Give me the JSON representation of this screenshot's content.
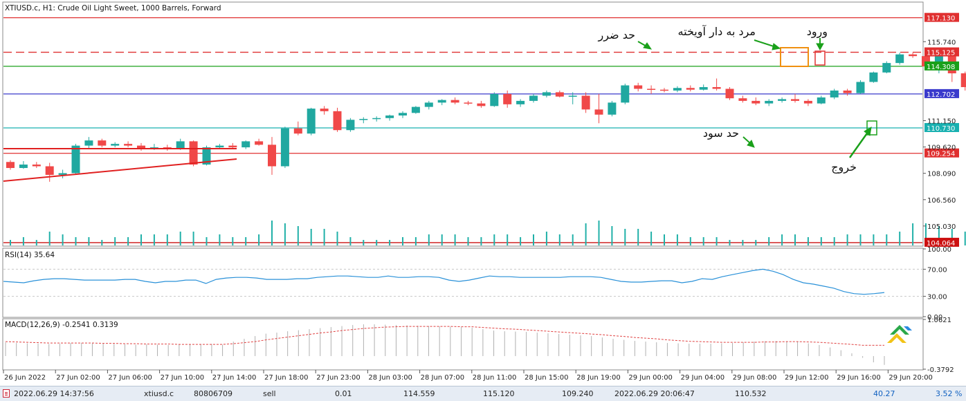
{
  "header": {
    "title": "XTIUSD.c, H1:  Crude Oil Light Sweet, 1000 Barrels, Forward"
  },
  "annotations": {
    "stop_loss": "حد ضرر",
    "hanging_man": "مرد به دار آویخته",
    "entry": "ورود",
    "take_profit": "حد سود",
    "exit": "خروج"
  },
  "chart_data": [
    {
      "type": "candlestick",
      "title": "XTIUSD.c, H1:  Crude Oil Light Sweet, 1000 Barrels, Forward",
      "ylim": [
        103.9,
        118.0
      ],
      "y_ticks": [
        "115.740",
        "111.150",
        "109.620",
        "108.090",
        "106.560",
        "105.030"
      ],
      "y_tick_values": [
        115.74,
        111.15,
        109.62,
        108.09,
        106.56,
        105.03
      ],
      "x_ticks": [
        "26 Jun 2022",
        "27 Jun 02:00",
        "27 Jun 06:00",
        "27 Jun 10:00",
        "27 Jun 14:00",
        "27 Jun 18:00",
        "27 Jun 23:00",
        "28 Jun 03:00",
        "28 Jun 07:00",
        "28 Jun 11:00",
        "28 Jun 15:00",
        "28 Jun 19:00",
        "29 Jun 00:00",
        "29 Jun 04:00",
        "29 Jun 08:00",
        "29 Jun 12:00",
        "29 Jun 16:00",
        "29 Jun 20:00"
      ],
      "candles": [
        {
          "o": 108.75,
          "h": 108.85,
          "l": 108.3,
          "c": 108.4
        },
        {
          "o": 108.4,
          "h": 108.8,
          "l": 108.35,
          "c": 108.6
        },
        {
          "o": 108.6,
          "h": 108.75,
          "l": 108.4,
          "c": 108.5
        },
        {
          "o": 108.5,
          "h": 108.7,
          "l": 107.6,
          "c": 108.0
        },
        {
          "o": 108.0,
          "h": 108.3,
          "l": 107.8,
          "c": 108.1
        },
        {
          "o": 108.1,
          "h": 109.8,
          "l": 108.0,
          "c": 109.7
        },
        {
          "o": 109.7,
          "h": 110.2,
          "l": 109.5,
          "c": 110.0
        },
        {
          "o": 110.0,
          "h": 110.1,
          "l": 109.6,
          "c": 109.7
        },
        {
          "o": 109.7,
          "h": 109.9,
          "l": 109.6,
          "c": 109.8
        },
        {
          "o": 109.8,
          "h": 109.95,
          "l": 109.6,
          "c": 109.7
        },
        {
          "o": 109.7,
          "h": 109.85,
          "l": 109.4,
          "c": 109.5
        },
        {
          "o": 109.5,
          "h": 109.8,
          "l": 109.45,
          "c": 109.6
        },
        {
          "o": 109.6,
          "h": 109.75,
          "l": 109.4,
          "c": 109.55
        },
        {
          "o": 109.55,
          "h": 110.1,
          "l": 109.45,
          "c": 109.95
        },
        {
          "o": 109.95,
          "h": 110.0,
          "l": 108.5,
          "c": 108.6
        },
        {
          "o": 108.6,
          "h": 109.7,
          "l": 108.55,
          "c": 109.6
        },
        {
          "o": 109.6,
          "h": 109.8,
          "l": 109.5,
          "c": 109.7
        },
        {
          "o": 109.7,
          "h": 109.85,
          "l": 109.55,
          "c": 109.6
        },
        {
          "o": 109.6,
          "h": 110.0,
          "l": 109.5,
          "c": 109.95
        },
        {
          "o": 109.95,
          "h": 110.1,
          "l": 109.7,
          "c": 109.75
        },
        {
          "o": 109.75,
          "h": 110.2,
          "l": 108.0,
          "c": 108.5
        },
        {
          "o": 108.5,
          "h": 110.8,
          "l": 108.4,
          "c": 110.7
        },
        {
          "o": 110.7,
          "h": 111.1,
          "l": 110.3,
          "c": 110.4
        },
        {
          "o": 110.4,
          "h": 111.9,
          "l": 110.3,
          "c": 111.85
        },
        {
          "o": 111.85,
          "h": 112.0,
          "l": 111.5,
          "c": 111.7
        },
        {
          "o": 111.7,
          "h": 111.9,
          "l": 110.5,
          "c": 110.6
        },
        {
          "o": 110.6,
          "h": 111.3,
          "l": 110.5,
          "c": 111.2
        },
        {
          "o": 111.2,
          "h": 111.35,
          "l": 111.0,
          "c": 111.25
        },
        {
          "o": 111.25,
          "h": 111.4,
          "l": 111.1,
          "c": 111.3
        },
        {
          "o": 111.3,
          "h": 111.5,
          "l": 111.15,
          "c": 111.45
        },
        {
          "o": 111.45,
          "h": 111.7,
          "l": 111.3,
          "c": 111.6
        },
        {
          "o": 111.6,
          "h": 112.0,
          "l": 111.55,
          "c": 111.95
        },
        {
          "o": 111.95,
          "h": 112.3,
          "l": 111.8,
          "c": 112.2
        },
        {
          "o": 112.2,
          "h": 112.4,
          "l": 112.05,
          "c": 112.35
        },
        {
          "o": 112.35,
          "h": 112.5,
          "l": 112.1,
          "c": 112.2
        },
        {
          "o": 112.2,
          "h": 112.3,
          "l": 112.05,
          "c": 112.15
        },
        {
          "o": 112.15,
          "h": 112.3,
          "l": 111.9,
          "c": 112.0
        },
        {
          "o": 112.0,
          "h": 112.8,
          "l": 111.95,
          "c": 112.7
        },
        {
          "o": 112.7,
          "h": 112.9,
          "l": 111.9,
          "c": 112.1
        },
        {
          "o": 112.1,
          "h": 112.4,
          "l": 111.95,
          "c": 112.3
        },
        {
          "o": 112.3,
          "h": 112.7,
          "l": 112.2,
          "c": 112.6
        },
        {
          "o": 112.6,
          "h": 112.9,
          "l": 112.5,
          "c": 112.8
        },
        {
          "o": 112.8,
          "h": 112.9,
          "l": 112.5,
          "c": 112.55
        },
        {
          "o": 112.55,
          "h": 112.8,
          "l": 112.1,
          "c": 112.6
        },
        {
          "o": 112.6,
          "h": 112.8,
          "l": 111.6,
          "c": 111.8
        },
        {
          "o": 111.8,
          "h": 112.7,
          "l": 111.0,
          "c": 111.5
        },
        {
          "o": 111.5,
          "h": 112.3,
          "l": 111.4,
          "c": 112.2
        },
        {
          "o": 112.2,
          "h": 113.3,
          "l": 112.1,
          "c": 113.2
        },
        {
          "o": 113.2,
          "h": 113.35,
          "l": 112.85,
          "c": 113.0
        },
        {
          "o": 113.0,
          "h": 113.2,
          "l": 112.7,
          "c": 112.95
        },
        {
          "o": 112.95,
          "h": 113.05,
          "l": 112.8,
          "c": 112.9
        },
        {
          "o": 112.9,
          "h": 113.15,
          "l": 112.8,
          "c": 113.05
        },
        {
          "o": 113.05,
          "h": 113.2,
          "l": 112.85,
          "c": 112.95
        },
        {
          "o": 112.95,
          "h": 113.25,
          "l": 112.9,
          "c": 113.1
        },
        {
          "o": 113.1,
          "h": 113.6,
          "l": 112.9,
          "c": 113.0
        },
        {
          "o": 113.0,
          "h": 113.1,
          "l": 112.35,
          "c": 112.45
        },
        {
          "o": 112.45,
          "h": 112.6,
          "l": 112.2,
          "c": 112.3
        },
        {
          "o": 112.3,
          "h": 112.5,
          "l": 112.05,
          "c": 112.15
        },
        {
          "o": 112.15,
          "h": 112.4,
          "l": 112.0,
          "c": 112.3
        },
        {
          "o": 112.3,
          "h": 112.5,
          "l": 112.2,
          "c": 112.4
        },
        {
          "o": 112.4,
          "h": 112.7,
          "l": 112.2,
          "c": 112.3
        },
        {
          "o": 112.3,
          "h": 112.4,
          "l": 112.0,
          "c": 112.15
        },
        {
          "o": 112.15,
          "h": 112.6,
          "l": 112.1,
          "c": 112.5
        },
        {
          "o": 112.5,
          "h": 113.0,
          "l": 112.4,
          "c": 112.9
        },
        {
          "o": 112.9,
          "h": 113.0,
          "l": 112.6,
          "c": 112.75
        },
        {
          "o": 112.75,
          "h": 113.5,
          "l": 112.7,
          "c": 113.4
        },
        {
          "o": 113.4,
          "h": 114.0,
          "l": 113.35,
          "c": 113.95
        },
        {
          "o": 113.95,
          "h": 114.6,
          "l": 113.9,
          "c": 114.5
        },
        {
          "o": 114.5,
          "h": 115.1,
          "l": 114.4,
          "c": 115.0
        },
        {
          "o": 115.0,
          "h": 115.1,
          "l": 114.8,
          "c": 114.9
        },
        {
          "o": 114.9,
          "h": 114.95,
          "l": 114.1,
          "c": 114.3
        },
        {
          "o": 114.3,
          "h": 115.1,
          "l": 113.9,
          "c": 114.9
        },
        {
          "o": 114.9,
          "h": 115.15,
          "l": 113.4,
          "c": 113.9
        },
        {
          "o": 113.9,
          "h": 114.0,
          "l": 112.9,
          "c": 113.1
        },
        {
          "o": 113.1,
          "h": 113.25,
          "l": 112.3,
          "c": 112.75
        },
        {
          "o": 112.75,
          "h": 112.8,
          "l": 111.9,
          "c": 112.0
        },
        {
          "o": 112.0,
          "h": 112.05,
          "l": 110.4,
          "c": 110.6
        },
        {
          "o": 110.6,
          "h": 110.85,
          "l": 110.2,
          "c": 110.65
        },
        {
          "o": 110.65,
          "h": 110.9,
          "l": 110.6,
          "c": 110.8
        }
      ],
      "volumes": [
        2,
        3,
        2,
        5,
        4,
        3,
        3,
        2,
        3,
        3,
        4,
        4,
        4,
        5,
        5,
        3,
        4,
        3,
        3,
        4,
        9,
        8,
        7,
        6,
        6,
        5,
        3,
        2,
        2,
        2,
        3,
        3,
        4,
        4,
        4,
        3,
        3,
        4,
        4,
        3,
        4,
        5,
        4,
        4,
        8,
        9,
        7,
        6,
        6,
        5,
        4,
        4,
        3,
        3,
        3,
        2,
        2,
        2,
        3,
        4,
        4,
        3,
        3,
        3,
        4,
        4,
        4,
        4,
        5,
        8,
        8,
        7,
        6,
        5,
        5,
        5,
        5,
        2,
        1
      ],
      "levels": [
        {
          "value": 117.13,
          "label": "117.130",
          "color": "#e03030",
          "style": "solid"
        },
        {
          "value": 115.125,
          "label": "115.125",
          "color": "#e03030",
          "style": "dashed"
        },
        {
          "value": 114.308,
          "label": "114.308",
          "color": "#1aa01a",
          "style": "solid"
        },
        {
          "value": 112.702,
          "label": "112.702",
          "color": "#3a3acc",
          "style": "solid"
        },
        {
          "value": 110.73,
          "label": "110.730",
          "color": "#18b0b0",
          "style": "solid"
        },
        {
          "value": 109.254,
          "label": "109.254",
          "color": "#e03030",
          "style": "solid"
        },
        {
          "value": 104.064,
          "label": "104.064",
          "color": "#cc1010",
          "style": "solid"
        }
      ],
      "colors": {
        "bull": "#20a8a0",
        "bear": "#f04848",
        "volume": "#20b0a8"
      }
    },
    {
      "type": "line",
      "title": "RSI(14) 35.64",
      "ylim": [
        0,
        100
      ],
      "y_ticks": [
        "100.00",
        "70.00",
        "30.00",
        "0.00"
      ],
      "y_tick_values": [
        100,
        70,
        30,
        0
      ],
      "levels": [
        70,
        30
      ],
      "values": [
        52,
        51,
        50,
        53,
        55,
        56,
        56,
        55,
        54,
        54,
        54,
        54,
        55,
        55,
        52,
        50,
        52,
        52,
        54,
        54,
        49,
        55,
        57,
        58,
        58,
        57,
        55,
        55,
        55,
        56,
        56,
        58,
        59,
        60,
        60,
        59,
        58,
        58,
        60,
        58,
        58,
        59,
        59,
        58,
        54,
        52,
        54,
        57,
        60,
        59,
        59,
        58,
        58,
        58,
        58,
        58,
        59,
        59,
        59,
        58,
        55,
        52,
        51,
        51,
        52,
        53,
        53,
        50,
        52,
        56,
        55,
        59,
        62,
        65,
        68,
        70,
        67,
        62,
        55,
        50,
        48,
        45,
        42,
        37,
        34,
        33,
        34,
        35.64
      ],
      "color": "#2890d8"
    },
    {
      "type": "bar",
      "title": "MACD(12,26,9) -0.2541 0.3139",
      "ylim": [
        -0.3792,
        1.0621
      ],
      "y_ticks": [
        "1.0621",
        "-0.3792"
      ],
      "y_tick_values": [
        1.0621,
        -0.3792
      ],
      "values": [
        0.4,
        0.38,
        0.37,
        0.36,
        0.35,
        0.36,
        0.38,
        0.38,
        0.37,
        0.36,
        0.35,
        0.34,
        0.33,
        0.34,
        0.33,
        0.32,
        0.33,
        0.34,
        0.35,
        0.35,
        0.33,
        0.42,
        0.5,
        0.58,
        0.65,
        0.68,
        0.72,
        0.75,
        0.78,
        0.81,
        0.84,
        0.87,
        0.9,
        0.92,
        0.92,
        0.91,
        0.9,
        0.89,
        0.88,
        0.87,
        0.86,
        0.85,
        0.84,
        0.82,
        0.78,
        0.74,
        0.72,
        0.71,
        0.7,
        0.68,
        0.66,
        0.64,
        0.62,
        0.6,
        0.58,
        0.54,
        0.5,
        0.47,
        0.44,
        0.42,
        0.4,
        0.38,
        0.37,
        0.36,
        0.36,
        0.36,
        0.37,
        0.38,
        0.4,
        0.42,
        0.43,
        0.44,
        0.43,
        0.41,
        0.37,
        0.32,
        0.25,
        0.17,
        0.08,
        -0.05,
        -0.18,
        -0.2541
      ],
      "signal": [
        0.42,
        0.41,
        0.4,
        0.39,
        0.38,
        0.38,
        0.38,
        0.38,
        0.38,
        0.37,
        0.37,
        0.36,
        0.36,
        0.35,
        0.35,
        0.35,
        0.34,
        0.34,
        0.34,
        0.34,
        0.34,
        0.36,
        0.39,
        0.42,
        0.47,
        0.51,
        0.55,
        0.59,
        0.63,
        0.67,
        0.7,
        0.74,
        0.77,
        0.8,
        0.82,
        0.84,
        0.85,
        0.86,
        0.86,
        0.86,
        0.86,
        0.86,
        0.85,
        0.85,
        0.83,
        0.81,
        0.79,
        0.78,
        0.76,
        0.74,
        0.72,
        0.7,
        0.68,
        0.66,
        0.64,
        0.62,
        0.59,
        0.57,
        0.54,
        0.52,
        0.5,
        0.47,
        0.45,
        0.43,
        0.42,
        0.41,
        0.4,
        0.4,
        0.4,
        0.4,
        0.41,
        0.41,
        0.42,
        0.42,
        0.41,
        0.4,
        0.38,
        0.36,
        0.34,
        0.3139,
        0.3139,
        0.3139
      ],
      "colors": {
        "histogram": "#b0b0b0",
        "signal": "#e04040"
      }
    }
  ],
  "status_bar": {
    "open_time": "2022.06.29 14:37:56",
    "symbol": "xtiusd.c",
    "ticket": "80806709",
    "type": "sell",
    "volume": "0.01",
    "price_open": "114.559",
    "sl": "115.120",
    "tp": "109.240",
    "close_time": "2022.06.29 20:06:47",
    "price_close": "110.532",
    "profit": "40.27",
    "percent": "3.52 %"
  }
}
